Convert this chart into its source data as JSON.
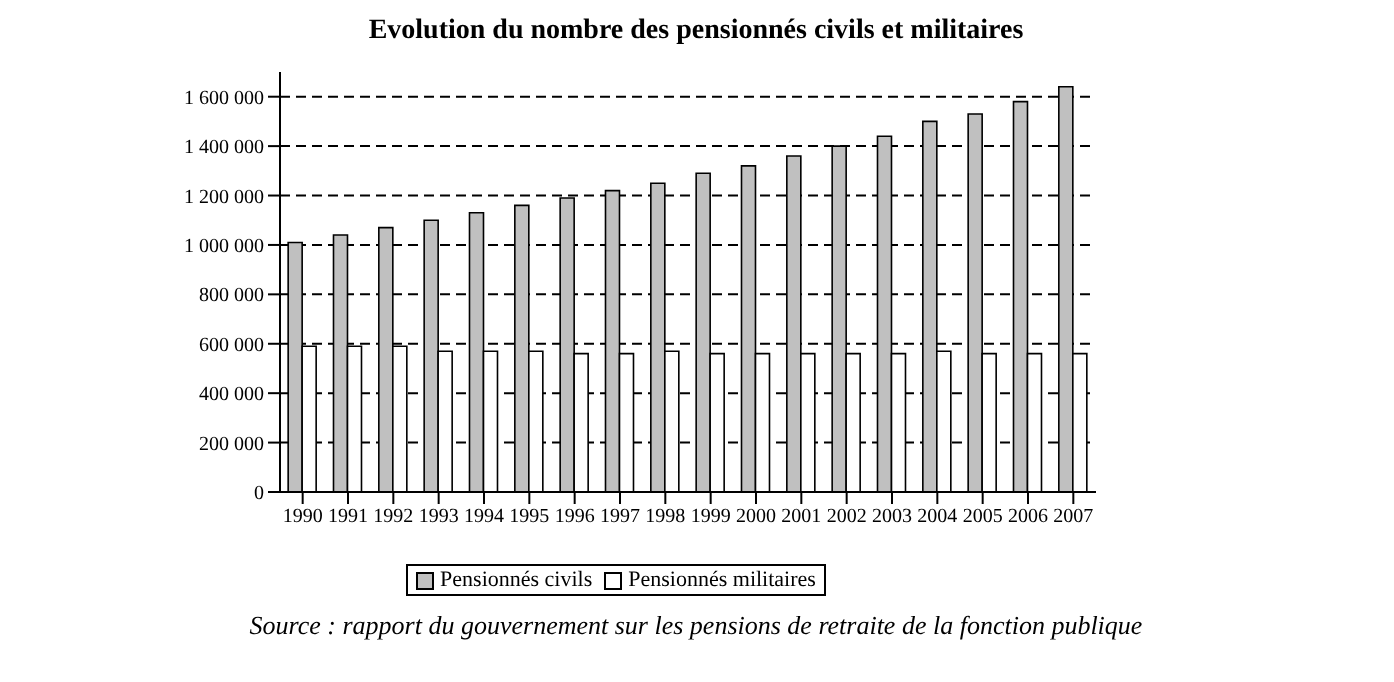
{
  "chart_data": {
    "type": "bar",
    "title": "Evolution du nombre des pensionnés civils et militaires",
    "categories": [
      "1990",
      "1991",
      "1992",
      "1993",
      "1994",
      "1995",
      "1996",
      "1997",
      "1998",
      "1999",
      "2000",
      "2001",
      "2002",
      "2003",
      "2004",
      "2005",
      "2006",
      "2007"
    ],
    "series": [
      {
        "name": "Pensionnés civils",
        "color": "#c0c0c0",
        "values": [
          1010000,
          1040000,
          1070000,
          1100000,
          1130000,
          1160000,
          1190000,
          1220000,
          1250000,
          1290000,
          1320000,
          1360000,
          1400000,
          1440000,
          1500000,
          1530000,
          1580000,
          1640000
        ]
      },
      {
        "name": "Pensionnés militaires",
        "color": "#ffffff",
        "values": [
          590000,
          590000,
          590000,
          570000,
          570000,
          570000,
          560000,
          560000,
          570000,
          560000,
          560000,
          560000,
          560000,
          560000,
          570000,
          560000,
          560000,
          560000
        ]
      }
    ],
    "ylim": [
      0,
      1700000
    ],
    "yticks": [
      {
        "value": 0,
        "label": "0"
      },
      {
        "value": 200000,
        "label": "200 000"
      },
      {
        "value": 400000,
        "label": "400 000"
      },
      {
        "value": 600000,
        "label": "600 000"
      },
      {
        "value": 800000,
        "label": "800 000"
      },
      {
        "value": 1000000,
        "label": "1 000 000"
      },
      {
        "value": 1200000,
        "label": "1 200 000"
      },
      {
        "value": 1400000,
        "label": "1 400 000"
      },
      {
        "value": 1600000,
        "label": "1 600 000"
      }
    ],
    "grid": "y",
    "legend": "bottom",
    "annotations": [
      "Source : rapport du gouvernement sur les pensions de retraite de la fonction publique"
    ]
  }
}
